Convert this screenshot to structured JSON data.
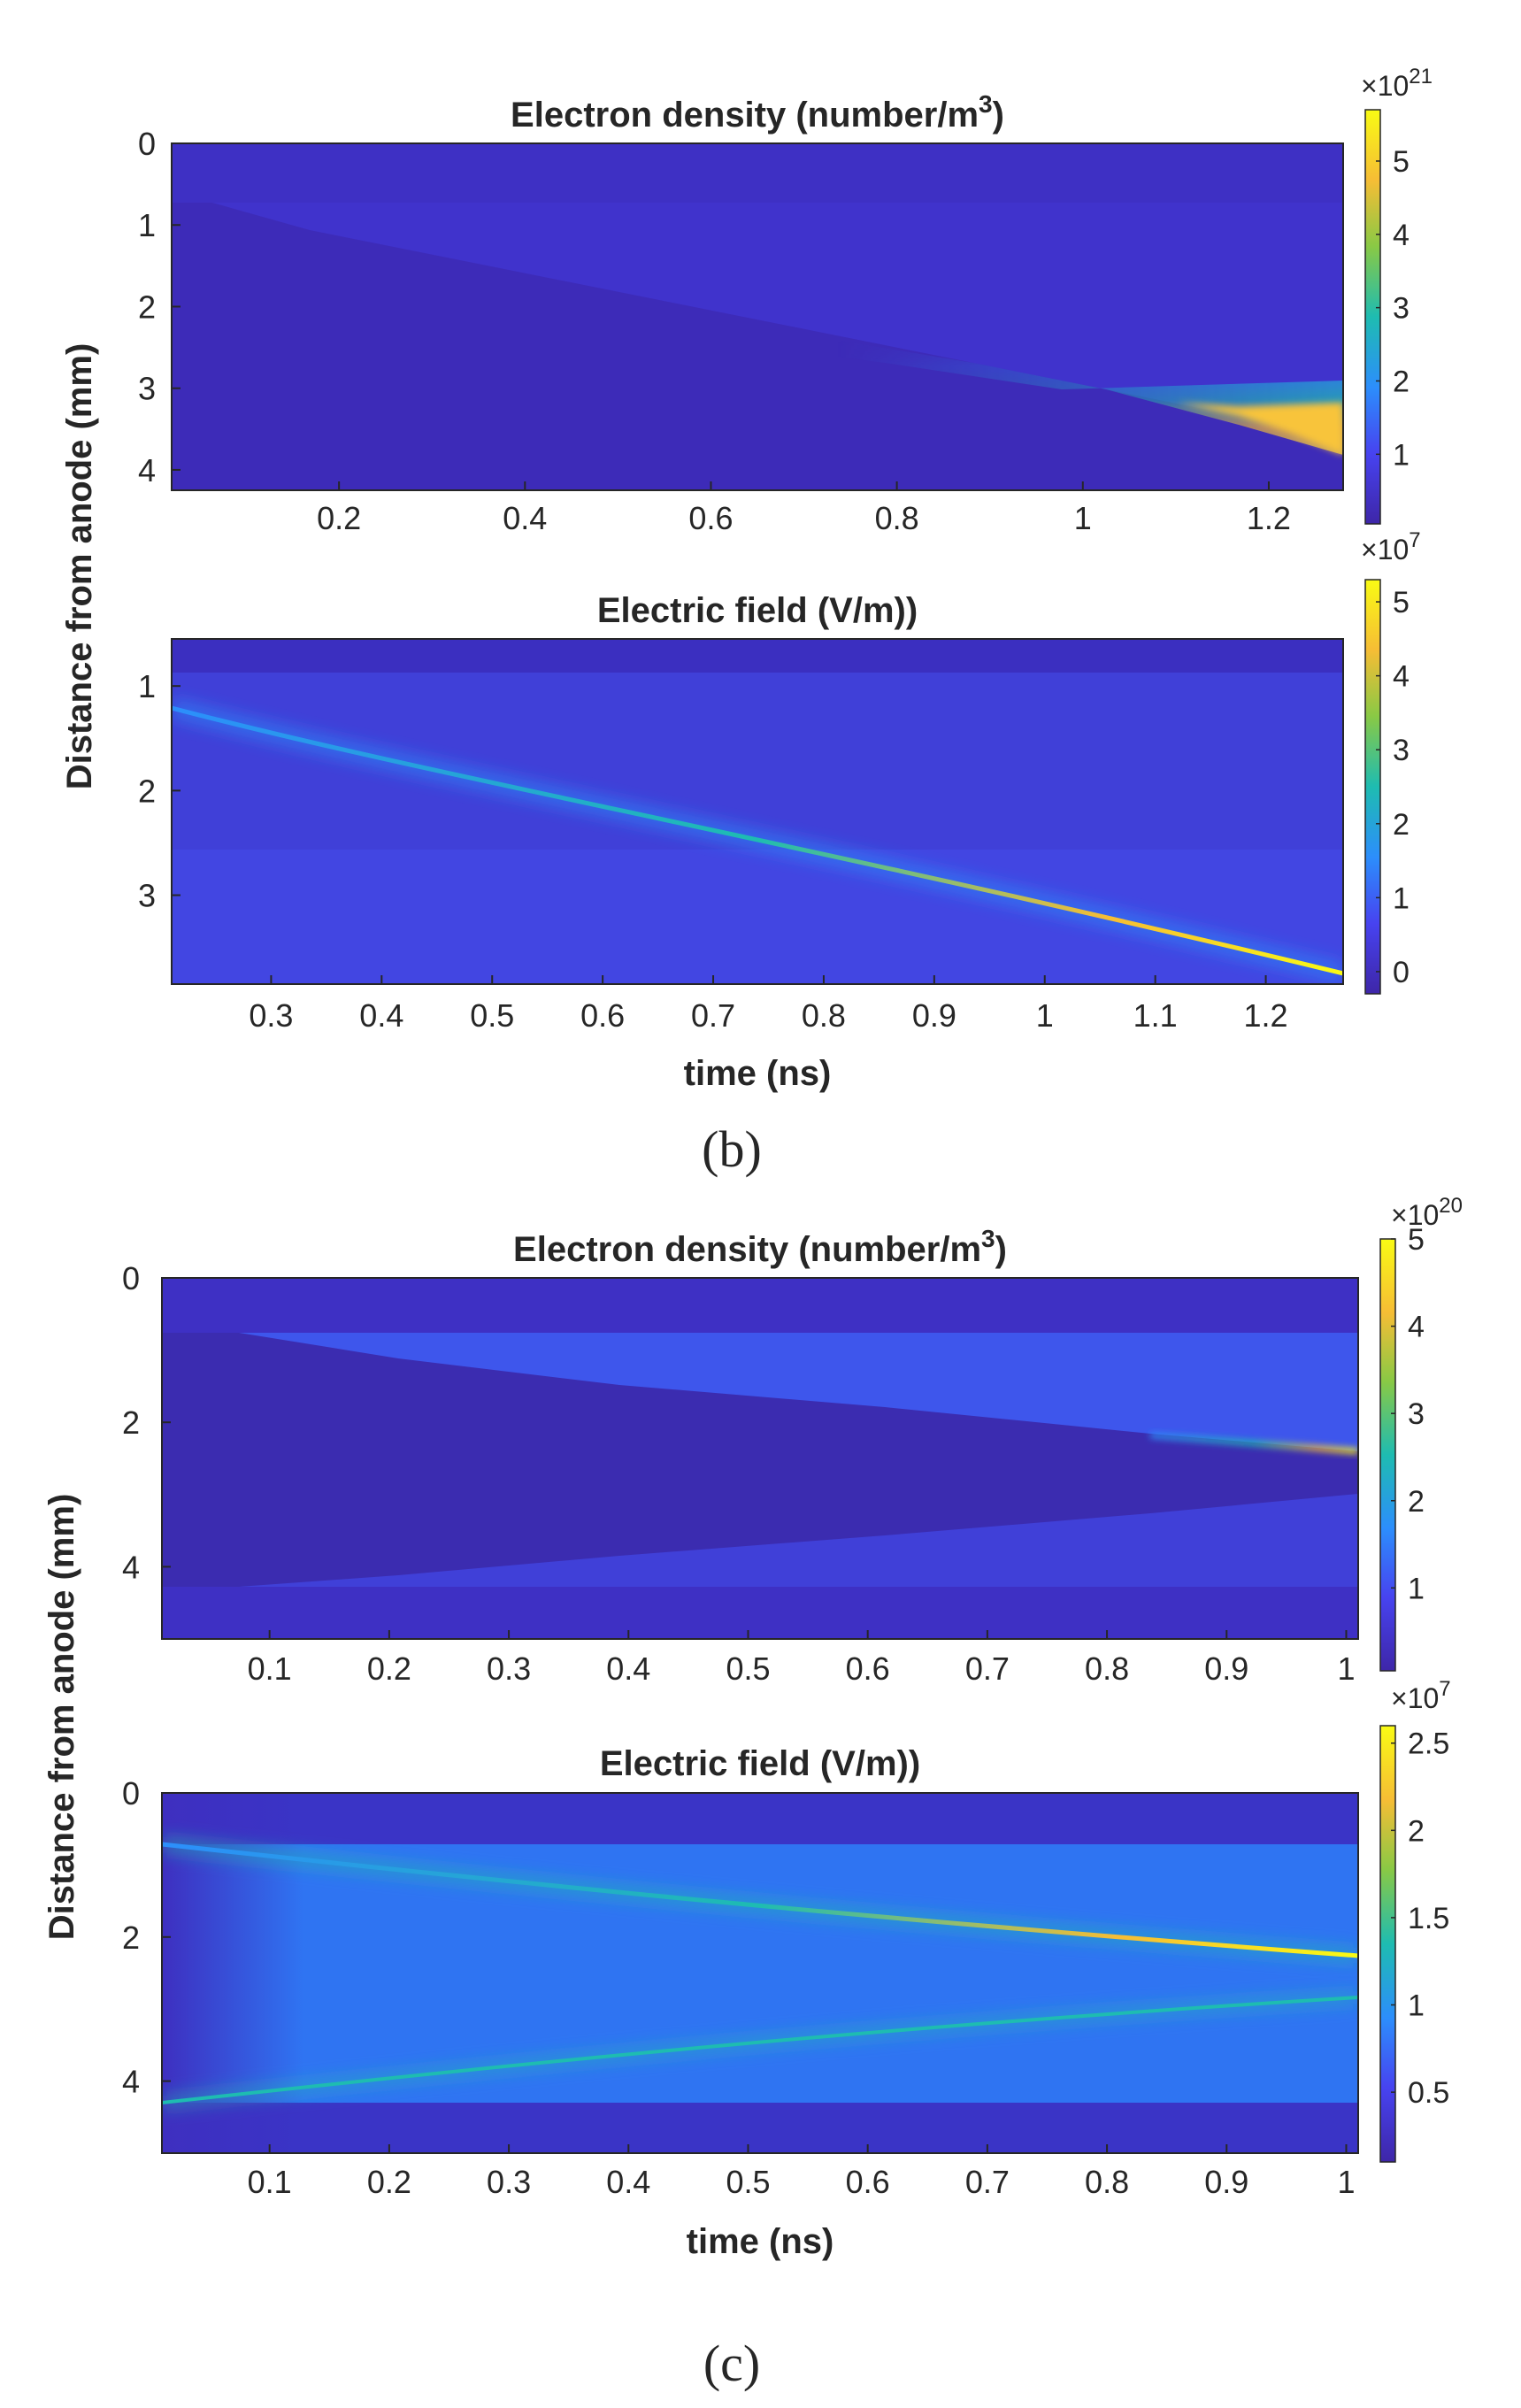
{
  "panel_labels": [
    "(b)",
    "(c)"
  ],
  "shared": {
    "ylabel": "Distance from anode (mm)",
    "xlabel": "time (ns)"
  },
  "colormap": [
    "#3e26a8",
    "#4743f0",
    "#2c8efc",
    "#1ebcb1",
    "#89c945",
    "#f6bd35",
    "#f9fb14"
  ],
  "chart_data": [
    {
      "type": "heatmap",
      "id": "b_density",
      "title": "Electron density (number/m",
      "title_sup": "3",
      "title_end": ")",
      "x_range": [
        0.02,
        1.28
      ],
      "y_range": [
        0,
        4.25
      ],
      "y_reversed": true,
      "xticks": [
        0.2,
        0.4,
        0.6,
        0.8,
        1,
        1.2
      ],
      "xtick_labels": [
        "0.2",
        "0.4",
        "0.6",
        "0.8",
        "1",
        "1.2"
      ],
      "yticks": [
        0,
        1,
        2,
        3,
        4
      ],
      "ytick_labels": [
        "0",
        "1",
        "2",
        "3",
        "4"
      ],
      "colorbar": {
        "range": [
          0.05,
          5.7
        ],
        "ticks": [
          1,
          2,
          3,
          4,
          5
        ],
        "tick_labels": [
          "1",
          "2",
          "3",
          "4",
          "5"
        ],
        "exponent_base": "×10",
        "exponent": "21"
      }
    },
    {
      "type": "heatmap",
      "id": "b_field",
      "title": "Electric field (V/m))",
      "xlabel": "time (ns)",
      "x_range": [
        0.21,
        1.27
      ],
      "y_range": [
        0.55,
        3.85
      ],
      "y_reversed": true,
      "xticks": [
        0.3,
        0.4,
        0.5,
        0.6,
        0.7,
        0.8,
        0.9,
        1,
        1.1,
        1.2
      ],
      "xtick_labels": [
        "0.3",
        "0.4",
        "0.5",
        "0.6",
        "0.7",
        "0.8",
        "0.9",
        "1",
        "1.1",
        "1.2"
      ],
      "yticks": [
        1,
        2,
        3
      ],
      "ytick_labels": [
        "1",
        "2",
        "3"
      ],
      "colorbar": {
        "range": [
          -0.3,
          5.3
        ],
        "ticks": [
          0,
          1,
          2,
          3,
          4,
          5
        ],
        "tick_labels": [
          "0",
          "1",
          "2",
          "3",
          "4",
          "5"
        ],
        "exponent_base": "×10",
        "exponent": "7"
      }
    },
    {
      "type": "heatmap",
      "id": "c_density",
      "title": "Electron density (number/m",
      "title_sup": "3",
      "title_end": ")",
      "x_range": [
        0.01,
        1.01
      ],
      "y_range": [
        0,
        5
      ],
      "y_reversed": true,
      "xticks": [
        0.1,
        0.2,
        0.3,
        0.4,
        0.5,
        0.6,
        0.7,
        0.8,
        0.9,
        1
      ],
      "xtick_labels": [
        "0.1",
        "0.2",
        "0.3",
        "0.4",
        "0.5",
        "0.6",
        "0.7",
        "0.8",
        "0.9",
        "1"
      ],
      "yticks": [
        0,
        2,
        4
      ],
      "ytick_labels": [
        "0",
        "2",
        "4"
      ],
      "colorbar": {
        "range": [
          0.05,
          5
        ],
        "ticks": [
          1,
          2,
          3,
          4,
          5
        ],
        "tick_labels": [
          "1",
          "2",
          "3",
          "4",
          "5"
        ],
        "exponent_base": "×10",
        "exponent": "20"
      }
    },
    {
      "type": "heatmap",
      "id": "c_field",
      "title": "Electric field (V/m))",
      "xlabel": "time (ns)",
      "x_range": [
        0.01,
        1.01
      ],
      "y_range": [
        0,
        5
      ],
      "y_reversed": true,
      "xticks": [
        0.1,
        0.2,
        0.3,
        0.4,
        0.5,
        0.6,
        0.7,
        0.8,
        0.9,
        1
      ],
      "xtick_labels": [
        "0.1",
        "0.2",
        "0.3",
        "0.4",
        "0.5",
        "0.6",
        "0.7",
        "0.8",
        "0.9",
        "1"
      ],
      "yticks": [
        0,
        2,
        4
      ],
      "ytick_labels": [
        "0",
        "2",
        "4"
      ],
      "colorbar": {
        "range": [
          0.1,
          2.6
        ],
        "ticks": [
          0.5,
          1,
          1.5,
          2,
          2.5
        ],
        "tick_labels": [
          "0.5",
          "1",
          "1.5",
          "2",
          "2.5"
        ],
        "exponent_base": "×10",
        "exponent": "7"
      }
    }
  ]
}
